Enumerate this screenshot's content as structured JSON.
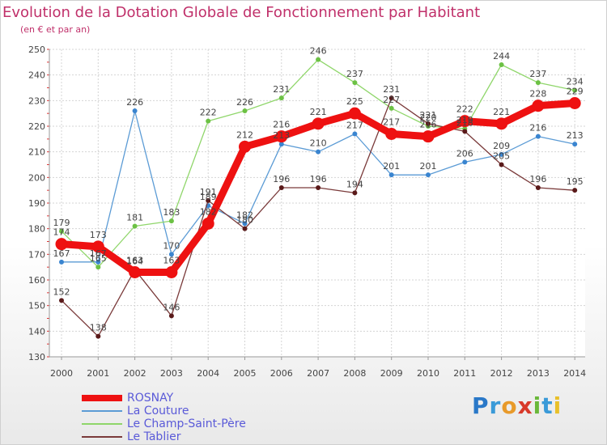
{
  "header": {
    "title": "Evolution de la Dotation Globale de Fonctionnement par Habitant",
    "subtitle": "(en € et par an)"
  },
  "brand": {
    "name": "Proxiti"
  },
  "colors": {
    "title": "#c0306a",
    "axis_text": "#444444",
    "grid": "#d4d4d4",
    "legend_text": "#5a5ad8"
  },
  "chart_data": {
    "type": "line",
    "title": "Evolution de la Dotation Globale de Fonctionnement par Habitant",
    "subtitle": "(en € et par an)",
    "xlabel": "",
    "ylabel": "",
    "x": [
      "2000",
      "2001",
      "2002",
      "2003",
      "2004",
      "2005",
      "2006",
      "2007",
      "2008",
      "2009",
      "2010",
      "2011",
      "2012",
      "2013",
      "2014"
    ],
    "ylim": [
      130,
      250
    ],
    "yticks": [
      130,
      140,
      150,
      160,
      170,
      180,
      190,
      200,
      210,
      220,
      230,
      240,
      250
    ],
    "grid": true,
    "legend_position": "bottom-left",
    "series": [
      {
        "name": "ROSNAY",
        "color": "#ee1111",
        "dot": "#ee1111",
        "lw": 9,
        "r": 7,
        "values": [
          174,
          173,
          163,
          163,
          182,
          212,
          216,
          221,
          225,
          217,
          216,
          222,
          221,
          228,
          229
        ]
      },
      {
        "name": "La Couture",
        "color": "#5b9bd5",
        "dot": "#3a85d0",
        "lw": 1.3,
        "r": 3,
        "values": [
          167,
          167,
          226,
          170,
          189,
          182,
          213,
          210,
          217,
          201,
          201,
          206,
          209,
          216,
          213
        ]
      },
      {
        "name": "Le Champ-Saint-Père",
        "color": "#8fd66a",
        "dot": "#6cc144",
        "lw": 1.3,
        "r": 3,
        "values": [
          179,
          165,
          181,
          183,
          222,
          226,
          231,
          246,
          237,
          227,
          220,
          219,
          244,
          237,
          234
        ]
      },
      {
        "name": "Le Tablier",
        "color": "#7a3a3a",
        "dot": "#5a1a1a",
        "lw": 1.3,
        "r": 3,
        "values": [
          152,
          138,
          164,
          146,
          191,
          180,
          196,
          196,
          194,
          231,
          221,
          218,
          205,
          196,
          195
        ]
      }
    ]
  }
}
